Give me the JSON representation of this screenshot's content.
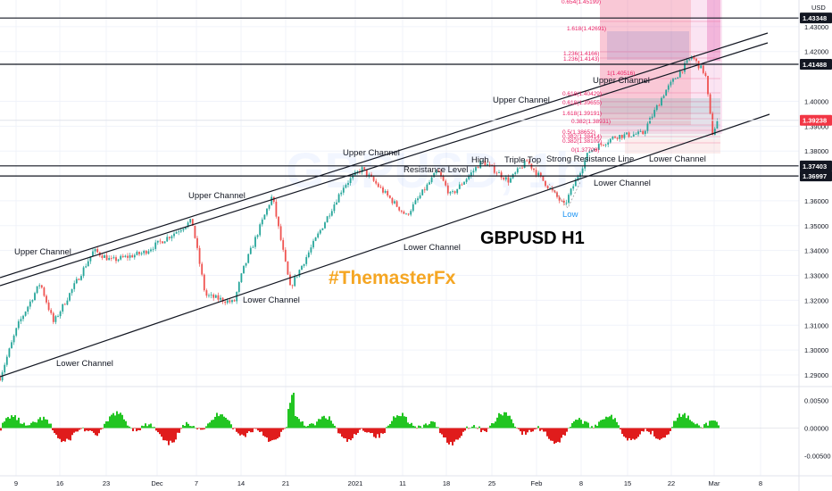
{
  "chart_data": [
    {
      "type": "candlestick",
      "title": "GBPUSD H1",
      "watermark": "#ThemasterFx",
      "currency": "USD",
      "ylim": [
        1.285,
        1.44
      ],
      "y_ticks": [
        "1.29000",
        "1.30000",
        "1.31000",
        "1.32000",
        "1.33000",
        "1.34000",
        "1.35000",
        "1.36000",
        "1.38000",
        "1.39000",
        "1.40000",
        "1.42000",
        "1.43000"
      ],
      "x_ticks": [
        "9",
        "16",
        "23",
        "Dec",
        "7",
        "14",
        "21",
        "2021",
        "11",
        "18",
        "25",
        "Feb",
        "8",
        "15",
        "22",
        "Mar",
        "8"
      ],
      "price_tags": [
        {
          "label": "1.43348",
          "value": 1.43348,
          "color": "#131722"
        },
        {
          "label": "1.41488",
          "value": 1.41488,
          "color": "#131722"
        },
        {
          "label": "1.39238",
          "value": 1.39238,
          "color": "#f23645"
        },
        {
          "label": "1.37403",
          "value": 1.37403,
          "color": "#131722"
        },
        {
          "label": "1.36997",
          "value": 1.36997,
          "color": "#131722"
        }
      ],
      "annotations": [
        "Upper Channel",
        "Upper Channel",
        "Upper Channel",
        "Upper Channel",
        "Upper Channel",
        "Lower Channel",
        "Lower Channel",
        "Lower Channel",
        "Lower Channel",
        "Lower Channel",
        "Resistance Level",
        "High",
        "Triple Top",
        "Strong Resistance Line",
        "Low"
      ],
      "fib_labels": [
        "0.654(1.45199)",
        "1.618(1.42691)",
        "1.236(1.4166)",
        "1.236(1.4143)",
        "0.618(1.40429)",
        "1(1.40516)",
        "0.618(1.39655)",
        "1.618(1.39191)",
        "0.382(1.38931)",
        "0.5(1.38652)",
        "0.382(1.38414)",
        "0.382(1.38109)",
        "0(1.37708)"
      ],
      "colors": {
        "up": "#26a69a",
        "down": "#ef5350",
        "line": "#131722",
        "zone_pink": "#e040a0",
        "zone_red": "#f23645"
      }
    },
    {
      "type": "histogram",
      "title": "",
      "ylim": [
        -0.006,
        0.006
      ],
      "y_ticks": [
        "0.00500",
        "0.00000",
        "-0.00500"
      ],
      "colors": {
        "positive": "#22c522",
        "negative": "#e01c1c"
      }
    }
  ]
}
